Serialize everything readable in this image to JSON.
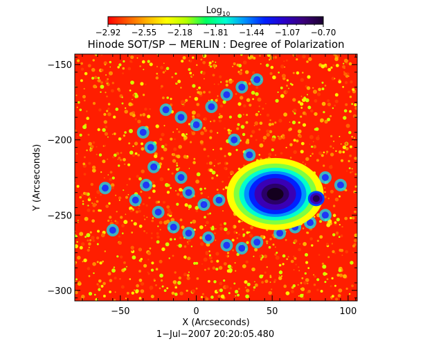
{
  "colorbar": {
    "label_base": "Log",
    "label_sub": "10",
    "ticks": [
      "−2.92",
      "−2.55",
      "−2.18",
      "−1.81",
      "−1.44",
      "−1.07",
      "−0.70"
    ],
    "colors": [
      "#ff0000",
      "#ff5a00",
      "#ffb400",
      "#ffff00",
      "#b4ff00",
      "#00ff60",
      "#00ffd0",
      "#0090ff",
      "#0020ff",
      "#2a00c8",
      "#3a0078",
      "#1a0030"
    ]
  },
  "figure": {
    "title": "Hinode SOT/SP − MERLIN : Degree of Polarization",
    "date": "1−Jul−2007 20:20:05.480"
  },
  "chart_data": {
    "type": "heatmap",
    "title": "Hinode SOT/SP − MERLIN : Degree of Polarization",
    "xlabel": "X (Arcseconds)",
    "ylabel": "Y (Arcseconds)",
    "xlim": [
      -80,
      106
    ],
    "ylim": [
      -307,
      -143
    ],
    "xticks": [
      -50,
      0,
      50,
      100
    ],
    "yticks": [
      -150,
      -200,
      -250,
      -300
    ],
    "xtick_labels": [
      "−50",
      "0",
      "50",
      "100"
    ],
    "ytick_labels": [
      "−150",
      "−200",
      "−250",
      "−300"
    ],
    "color_scale": "log10",
    "value_range": [
      -2.92,
      -0.7
    ],
    "features": [
      {
        "kind": "sunspot umbra",
        "center": [
          52,
          -236
        ],
        "value": -0.75
      },
      {
        "kind": "sunspot penumbra",
        "center": [
          52,
          -236
        ],
        "value": -1.2
      },
      {
        "kind": "pore",
        "center": [
          79,
          -239
        ],
        "value": -0.9
      },
      {
        "kind": "plage network",
        "center": [
          -20,
          -235
        ],
        "value": -1.4
      }
    ]
  }
}
